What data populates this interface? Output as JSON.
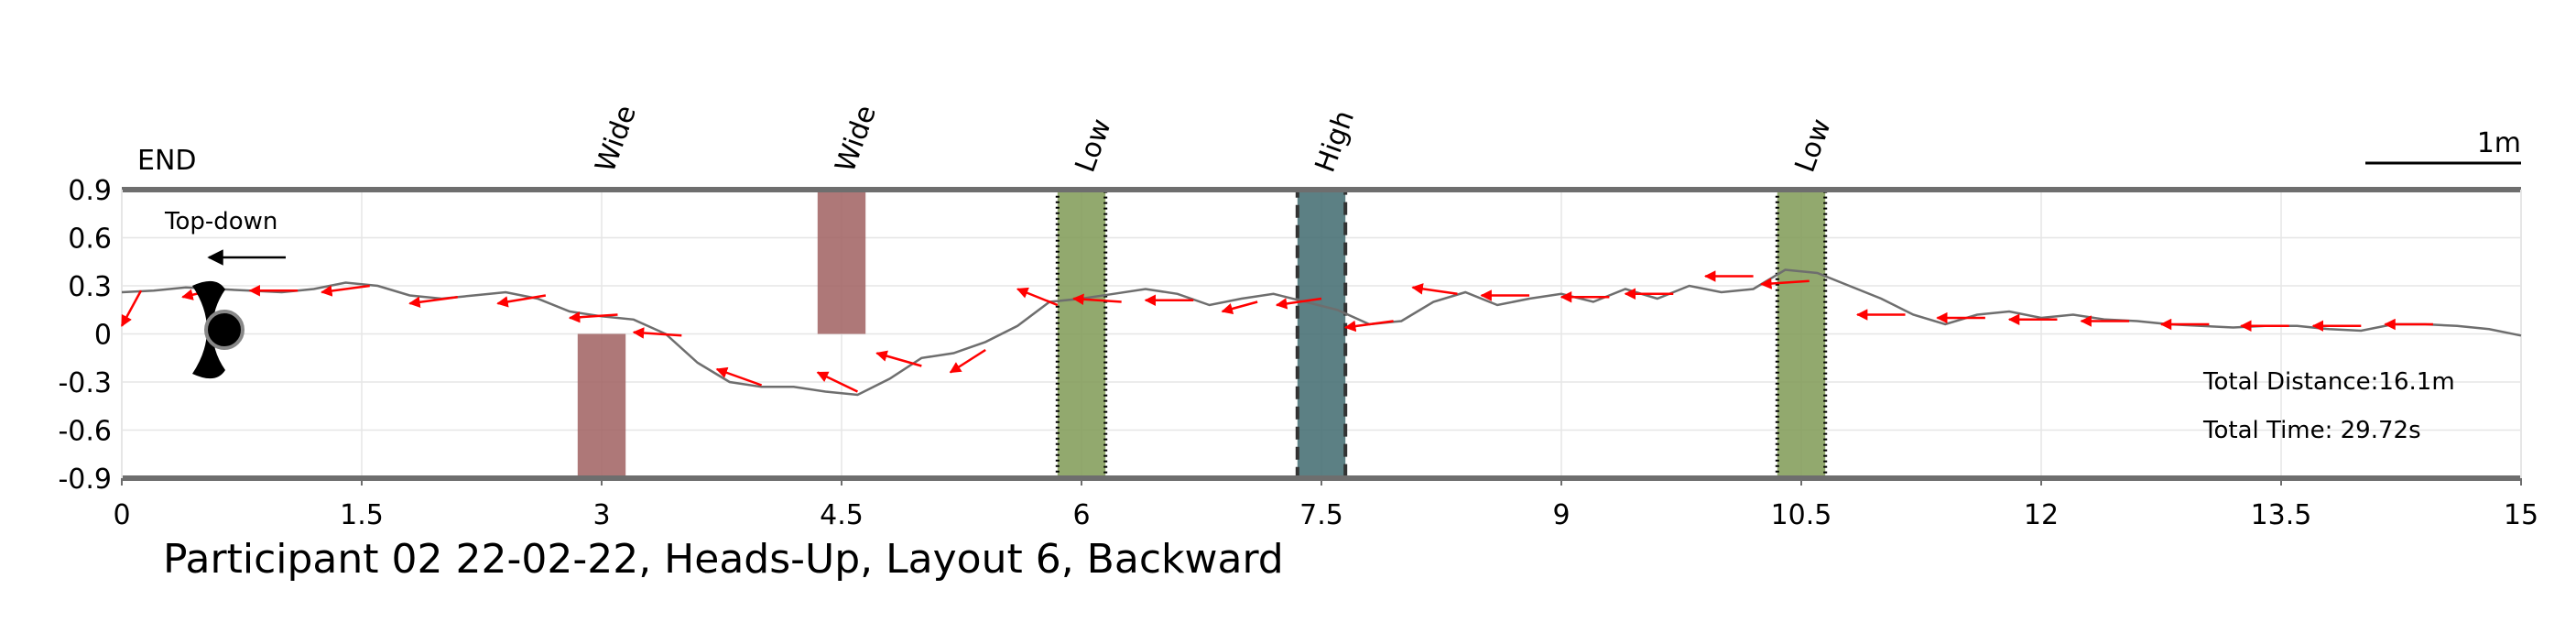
{
  "chart_data": {
    "type": "line",
    "title": "Participant 02 22-02-22, Heads-Up, Layout 6, Backward",
    "xlabel": "",
    "ylabel": "",
    "xlim": [
      0,
      15
    ],
    "ylim": [
      -0.9,
      0.9
    ],
    "x_ticks": [
      "0",
      "1.5",
      "3",
      "4.5",
      "6",
      "7.5",
      "9",
      "10.5",
      "12",
      "13.5",
      "15"
    ],
    "y_ticks": [
      "0.9",
      "0.6",
      "0.3",
      "0",
      "-0.3",
      "-0.6",
      "-0.9"
    ],
    "grid": true,
    "end_label": "END",
    "view_label": "Top-down",
    "scale_bar_label": "1m",
    "total_distance": "Total Distance:16.1m",
    "total_time": "Total Time: 29.72s",
    "obstacles": [
      {
        "label": "Wide",
        "x": [
          2.85,
          3.15
        ],
        "y": [
          -0.9,
          0.0
        ],
        "color": "#a06060",
        "border": "none"
      },
      {
        "label": "Wide",
        "x": [
          4.35,
          4.65
        ],
        "y": [
          0.0,
          0.9
        ],
        "color": "#a06060",
        "border": "none"
      },
      {
        "label": "Low",
        "x": [
          5.85,
          6.15
        ],
        "y": [
          -0.9,
          0.9
        ],
        "color": "#7f9a55",
        "border": "dotted"
      },
      {
        "label": "High",
        "x": [
          7.35,
          7.65
        ],
        "y": [
          -0.9,
          0.9
        ],
        "color": "#3f6a6e",
        "border": "dashed"
      },
      {
        "label": "Low",
        "x": [
          10.35,
          10.65
        ],
        "y": [
          -0.9,
          0.9
        ],
        "color": "#7f9a55",
        "border": "dotted"
      }
    ],
    "series": [
      {
        "x": [
          0.0,
          0.2,
          0.4,
          0.6,
          0.8,
          1.0,
          1.2,
          1.4,
          1.6,
          1.8,
          2.0,
          2.2,
          2.4,
          2.6,
          2.8,
          3.0,
          3.2,
          3.4,
          3.6,
          3.8,
          4.0,
          4.2,
          4.4,
          4.6,
          4.8,
          5.0,
          5.2,
          5.4,
          5.6,
          5.8,
          6.0,
          6.2,
          6.4,
          6.6,
          6.8,
          7.0,
          7.2,
          7.4,
          7.6,
          7.8,
          8.0,
          8.2,
          8.4,
          8.6,
          8.8,
          9.0,
          9.2,
          9.4,
          9.6,
          9.8,
          10.0,
          10.2,
          10.4,
          10.6,
          10.8,
          11.0,
          11.2,
          11.4,
          11.6,
          11.8,
          12.0,
          12.2,
          12.4,
          12.6,
          12.8,
          13.0,
          13.2,
          13.4,
          13.6,
          13.8,
          14.0,
          14.2,
          14.4,
          14.6,
          14.8,
          15.0
        ],
        "y": [
          0.26,
          0.27,
          0.29,
          0.28,
          0.27,
          0.26,
          0.28,
          0.32,
          0.3,
          0.24,
          0.22,
          0.24,
          0.26,
          0.22,
          0.14,
          0.11,
          0.09,
          0.0,
          -0.18,
          -0.3,
          -0.33,
          -0.33,
          -0.36,
          -0.38,
          -0.28,
          -0.15,
          -0.12,
          -0.05,
          0.05,
          0.2,
          0.22,
          0.25,
          0.28,
          0.25,
          0.18,
          0.22,
          0.25,
          0.2,
          0.15,
          0.06,
          0.08,
          0.2,
          0.26,
          0.18,
          0.22,
          0.25,
          0.2,
          0.28,
          0.22,
          0.3,
          0.26,
          0.28,
          0.4,
          0.38,
          0.3,
          0.22,
          0.12,
          0.06,
          0.12,
          0.14,
          0.1,
          0.12,
          0.09,
          0.08,
          0.06,
          0.05,
          0.04,
          0.05,
          0.05,
          0.03,
          0.02,
          0.06,
          0.06,
          0.05,
          0.03,
          -0.01
        ]
      }
    ],
    "heading_arrows": [
      {
        "x": 0.12,
        "y": 0.27,
        "dx": -0.12,
        "dy": -0.22
      },
      {
        "x": 0.6,
        "y": 0.28,
        "dx": -0.22,
        "dy": -0.05
      },
      {
        "x": 1.1,
        "y": 0.27,
        "dx": -0.3,
        "dy": 0.0
      },
      {
        "x": 1.55,
        "y": 0.3,
        "dx": -0.3,
        "dy": -0.04
      },
      {
        "x": 2.1,
        "y": 0.23,
        "dx": -0.3,
        "dy": -0.04
      },
      {
        "x": 2.65,
        "y": 0.24,
        "dx": -0.3,
        "dy": -0.05
      },
      {
        "x": 3.1,
        "y": 0.12,
        "dx": -0.3,
        "dy": -0.02
      },
      {
        "x": 3.5,
        "y": -0.01,
        "dx": -0.3,
        "dy": 0.02
      },
      {
        "x": 4.0,
        "y": -0.32,
        "dx": -0.28,
        "dy": 0.1
      },
      {
        "x": 4.6,
        "y": -0.36,
        "dx": -0.25,
        "dy": 0.12
      },
      {
        "x": 5.0,
        "y": -0.2,
        "dx": -0.28,
        "dy": 0.08
      },
      {
        "x": 5.4,
        "y": -0.1,
        "dx": -0.22,
        "dy": -0.14
      },
      {
        "x": 5.85,
        "y": 0.18,
        "dx": -0.25,
        "dy": 0.1
      },
      {
        "x": 6.25,
        "y": 0.2,
        "dx": -0.3,
        "dy": 0.02
      },
      {
        "x": 6.7,
        "y": 0.21,
        "dx": -0.3,
        "dy": 0.0
      },
      {
        "x": 7.1,
        "y": 0.2,
        "dx": -0.22,
        "dy": -0.06
      },
      {
        "x": 7.5,
        "y": 0.22,
        "dx": -0.28,
        "dy": -0.04
      },
      {
        "x": 7.95,
        "y": 0.08,
        "dx": -0.3,
        "dy": -0.04
      },
      {
        "x": 8.35,
        "y": 0.25,
        "dx": -0.28,
        "dy": 0.04
      },
      {
        "x": 8.8,
        "y": 0.24,
        "dx": -0.3,
        "dy": 0.0
      },
      {
        "x": 9.3,
        "y": 0.23,
        "dx": -0.3,
        "dy": 0.0
      },
      {
        "x": 9.7,
        "y": 0.25,
        "dx": -0.3,
        "dy": 0.0
      },
      {
        "x": 10.2,
        "y": 0.36,
        "dx": -0.3,
        "dy": 0.0
      },
      {
        "x": 10.55,
        "y": 0.33,
        "dx": -0.3,
        "dy": -0.02
      },
      {
        "x": 11.15,
        "y": 0.12,
        "dx": -0.3,
        "dy": 0.0
      },
      {
        "x": 11.65,
        "y": 0.1,
        "dx": -0.3,
        "dy": 0.0
      },
      {
        "x": 12.1,
        "y": 0.09,
        "dx": -0.3,
        "dy": 0.0
      },
      {
        "x": 12.55,
        "y": 0.08,
        "dx": -0.3,
        "dy": 0.0
      },
      {
        "x": 13.05,
        "y": 0.06,
        "dx": -0.3,
        "dy": 0.0
      },
      {
        "x": 13.55,
        "y": 0.05,
        "dx": -0.3,
        "dy": 0.0
      },
      {
        "x": 14.0,
        "y": 0.05,
        "dx": -0.3,
        "dy": 0.0
      },
      {
        "x": 14.45,
        "y": 0.06,
        "dx": -0.3,
        "dy": 0.0
      }
    ],
    "colors": {
      "trajectory": "#6e6e6e",
      "heading_arrow": "#ff0000",
      "axis": "#6e6e6e",
      "grid": "#e6e6e6"
    },
    "icons": [
      "walker-icon",
      "direction-arrow-icon"
    ]
  }
}
